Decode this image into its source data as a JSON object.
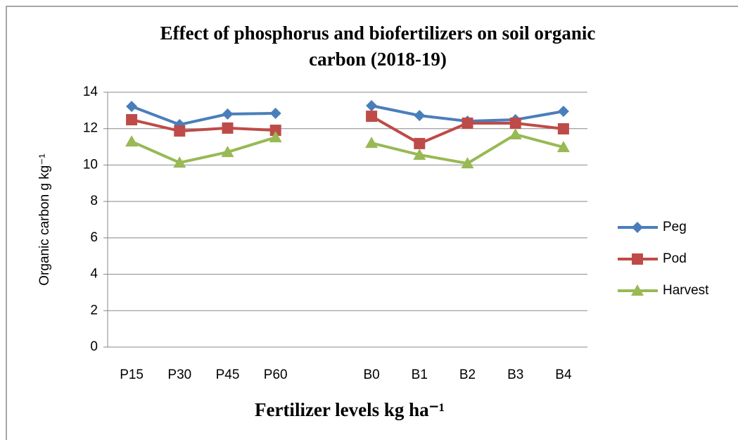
{
  "chart_data": {
    "type": "line",
    "title": [
      "Effect of phosphorus and biofertilizers on soil organic",
      "carbon (2018-19)"
    ],
    "ylabel": "Organic carbon g kg⁻¹",
    "xlabel": "Fertilizer levels kg ha⁻¹",
    "categories": [
      "P15",
      "P30",
      "P45",
      "P60",
      null,
      "B0",
      "B1",
      "B2",
      "B3",
      "B4"
    ],
    "series": [
      {
        "name": "Peg",
        "color": "#4a7ebb",
        "marker": "diamond",
        "values": [
          13.22,
          12.22,
          12.8,
          12.84,
          null,
          13.26,
          12.72,
          12.41,
          12.49,
          12.95
        ]
      },
      {
        "name": "Pod",
        "color": "#be4b48",
        "marker": "square",
        "values": [
          12.49,
          11.87,
          12.03,
          11.91,
          null,
          12.68,
          11.18,
          12.3,
          12.3,
          11.99
        ]
      },
      {
        "name": "Harvest",
        "color": "#98b954",
        "marker": "triangle",
        "values": [
          11.29,
          10.13,
          10.71,
          11.52,
          null,
          11.21,
          10.56,
          10.09,
          11.68,
          10.98
        ]
      }
    ],
    "ylim": [
      0,
      14
    ],
    "yticks": [
      0,
      2,
      4,
      6,
      8,
      10,
      12,
      14
    ],
    "grid": true,
    "legend": "right"
  }
}
